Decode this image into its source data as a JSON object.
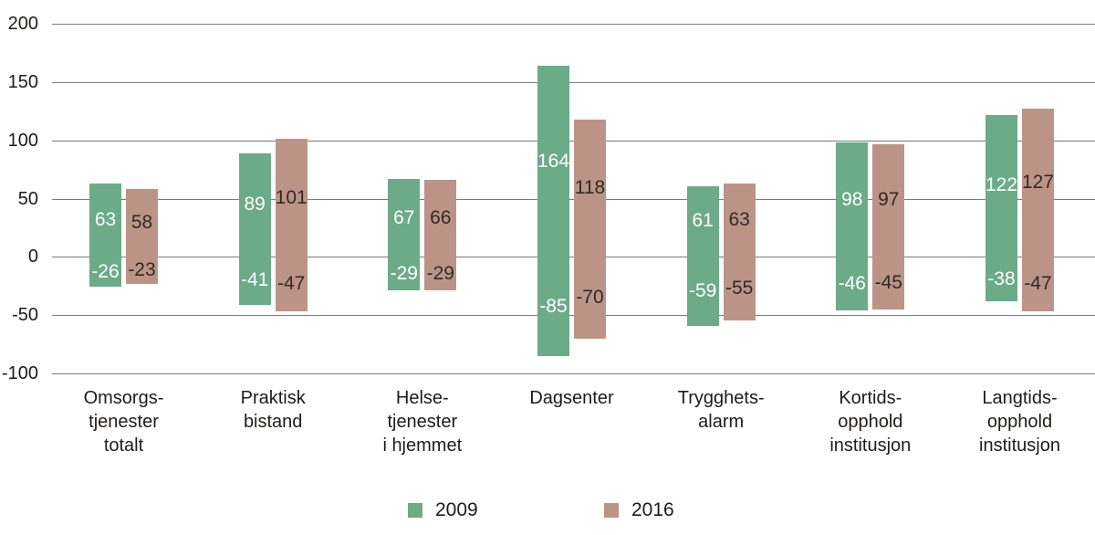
{
  "figure": {
    "background": "#ffffff"
  },
  "legend": {
    "items": [
      {
        "label": "2009",
        "color": "#6bab88"
      },
      {
        "label": "2016",
        "color": "#bc9486"
      }
    ]
  },
  "chart_data": {
    "type": "bar",
    "orientation": "vertical",
    "title": "",
    "xlabel": "",
    "ylabel": "",
    "categories": [
      {
        "lines": [
          "Omsorgs-",
          "tjenester",
          "totalt"
        ]
      },
      {
        "lines": [
          "Praktisk",
          "bistand"
        ]
      },
      {
        "lines": [
          "Helse-",
          "tjenester",
          "i hjemmet"
        ]
      },
      {
        "lines": [
          "Dagsenter"
        ]
      },
      {
        "lines": [
          "Trygghets-",
          "alarm"
        ]
      },
      {
        "lines": [
          "Kortids-",
          "opphold",
          "institusjon"
        ]
      },
      {
        "lines": [
          "Langtids-",
          "opphold",
          "institusjon"
        ]
      }
    ],
    "series": [
      {
        "name": "2009",
        "color": "#6bab88",
        "label_color": "#ffffff",
        "positive": [
          63,
          89,
          67,
          164,
          61,
          98,
          122
        ],
        "negative": [
          -26,
          -41,
          -29,
          -85,
          -59,
          -46,
          -38
        ]
      },
      {
        "name": "2016",
        "color": "#bc9486",
        "label_color": "#2e2b28",
        "positive": [
          58,
          101,
          66,
          118,
          63,
          97,
          127
        ],
        "negative": [
          -23,
          -47,
          -29,
          -70,
          -55,
          -45,
          -47
        ]
      }
    ],
    "y_ticks": [
      200,
      150,
      100,
      50,
      0,
      -50,
      -100
    ],
    "ylim": [
      -100,
      200
    ],
    "grid": true,
    "gridline_color": "#7b7b7b",
    "axis_label_color": "#1e1c1a",
    "legend_position": "bottom"
  }
}
